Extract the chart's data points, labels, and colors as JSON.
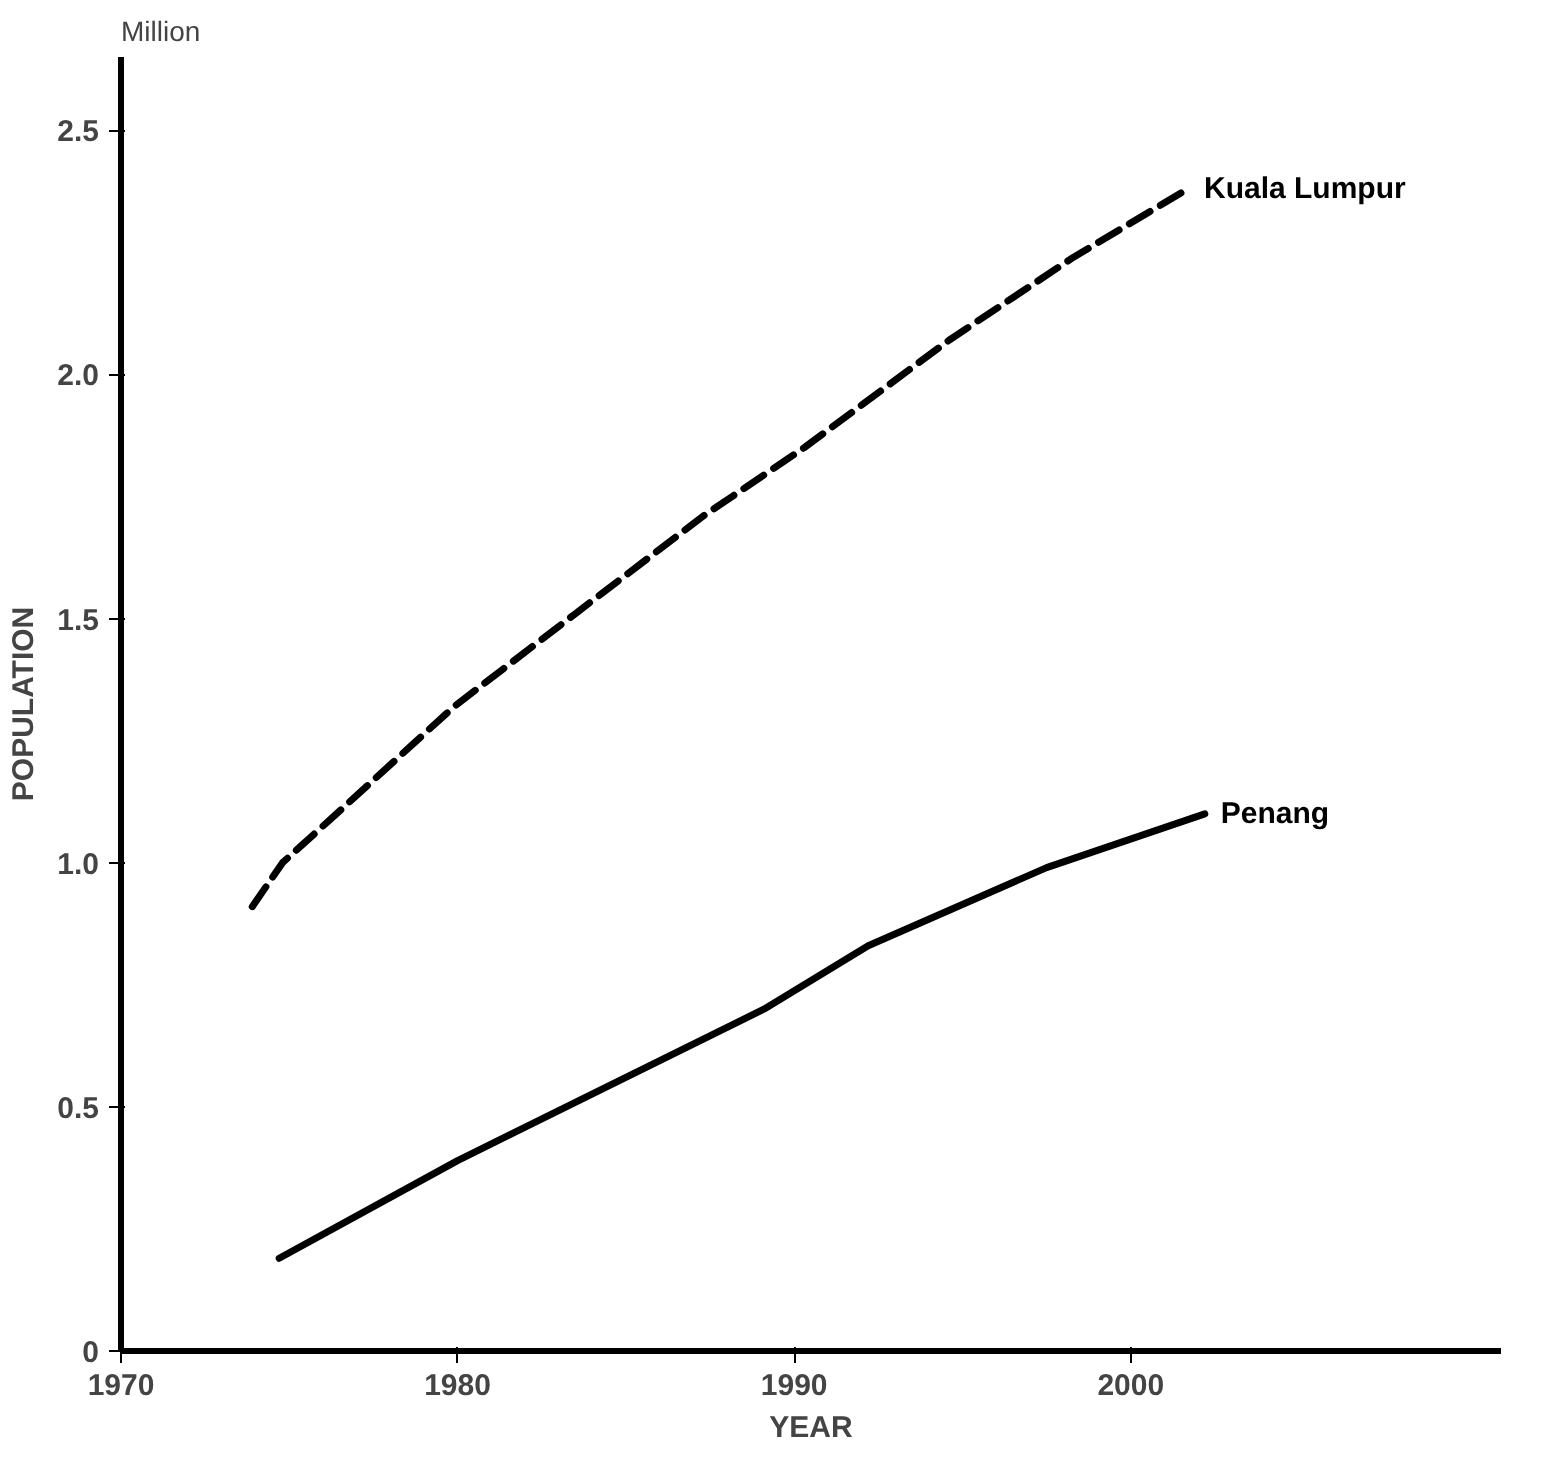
{
  "chart_data": {
    "type": "line",
    "xlabel": "YEAR",
    "ylabel": "POPULATION",
    "annotations": [
      "Million"
    ],
    "xlim": [
      1970,
      2011
    ],
    "ylim": [
      0,
      2.65
    ],
    "xticks": [
      1970,
      1980,
      1990,
      2000
    ],
    "yticks": [
      0,
      0.5,
      {
        "value": 1,
        "label": "1.0"
      },
      1.5,
      {
        "value": 2,
        "label": "2.0"
      },
      2.5
    ],
    "grid": false,
    "series": [
      {
        "name": "Kuala Lumpur",
        "color": "#000000",
        "line_style": "dashed",
        "x": [
          1973.9,
          1974.8,
          1976.4,
          1979.9,
          1983.5,
          1987.3,
          1990.3,
          1994.6,
          1998.3,
          2001.7
        ],
        "values": [
          0.91,
          1.0,
          1.1,
          1.32,
          1.51,
          1.71,
          1.85,
          2.07,
          2.24,
          2.38
        ]
      },
      {
        "name": "Penang",
        "color": "#000000",
        "line_style": "solid",
        "x": [
          1974.7,
          1980,
          1989.1,
          1992.2,
          1997.5,
          2002.2
        ],
        "values": [
          0.19,
          0.39,
          0.7,
          0.83,
          0.99,
          1.1
        ]
      }
    ]
  }
}
